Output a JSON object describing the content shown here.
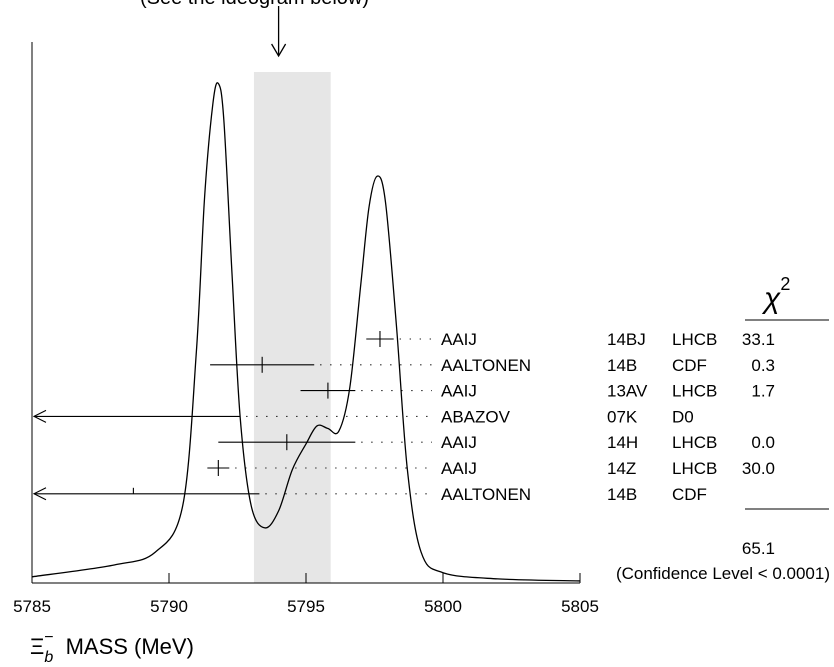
{
  "chart_data": {
    "type": "scatter",
    "title": "(See the ideogram below)",
    "xlabel_symbol": "Ξ",
    "xlabel_sub": "b",
    "xlabel_sup": "−",
    "xlabel_text": "MASS (MeV)",
    "xlim": [
      5785,
      5805
    ],
    "x_ticks": [
      5785,
      5790,
      5795,
      5800,
      5805
    ],
    "x_tick_labels": [
      "5785",
      "5790",
      "5795",
      "5800",
      "5805"
    ],
    "average": {
      "center": 5794.0,
      "band": [
        5793.1,
        5795.9
      ]
    },
    "chi2_header": "χ",
    "chi2_header_sup": "2",
    "measurements": [
      {
        "author": "AAIJ",
        "ref": "14BJ",
        "experiment": "LHCB",
        "value": 5797.7,
        "error_low": 0.5,
        "error_high": 0.5,
        "chi2": "33.1",
        "off_left": false
      },
      {
        "author": "AALTONEN",
        "ref": "14B",
        "experiment": "CDF",
        "value": 5793.4,
        "error_low": 1.9,
        "error_high": 1.9,
        "chi2": "0.3",
        "off_left": false
      },
      {
        "author": "AAIJ",
        "ref": "13AV",
        "experiment": "LHCB",
        "value": 5795.8,
        "error_low": 1.0,
        "error_high": 1.0,
        "chi2": "1.7",
        "off_left": false
      },
      {
        "author": "ABAZOV",
        "ref": "07K",
        "experiment": "D0",
        "value": null,
        "error_low": null,
        "error_high": 5792.6,
        "chi2": "",
        "off_left": true
      },
      {
        "author": "AAIJ",
        "ref": "14H",
        "experiment": "LHCB",
        "value": 5794.3,
        "error_low": 2.5,
        "error_high": 2.5,
        "chi2": "0.0",
        "off_left": false
      },
      {
        "author": "AAIJ",
        "ref": "14Z",
        "experiment": "LHCB",
        "value": 5791.8,
        "error_low": 0.4,
        "error_high": 0.4,
        "chi2": "30.0",
        "off_left": false
      },
      {
        "author": "AALTONEN",
        "ref": "14B",
        "experiment": "CDF",
        "value": 5788.7,
        "error_low": null,
        "error_high": 5793.3,
        "chi2": "",
        "off_left": true
      }
    ],
    "chi2_total": "65.1",
    "confidence_level": "(Confidence Level < 0.0001)",
    "ideogram": [
      [
        5785.0,
        0.012
      ],
      [
        5788.0,
        0.035
      ],
      [
        5789.5,
        0.06
      ],
      [
        5790.5,
        0.15
      ],
      [
        5791.0,
        0.45
      ],
      [
        5791.3,
        0.75
      ],
      [
        5791.6,
        0.93
      ],
      [
        5791.8,
        0.97
      ],
      [
        5792.0,
        0.9
      ],
      [
        5792.3,
        0.6
      ],
      [
        5792.6,
        0.32
      ],
      [
        5793.0,
        0.15
      ],
      [
        5793.5,
        0.107
      ],
      [
        5794.0,
        0.14
      ],
      [
        5794.5,
        0.22
      ],
      [
        5795.0,
        0.27
      ],
      [
        5795.4,
        0.305
      ],
      [
        5795.8,
        0.3
      ],
      [
        5796.2,
        0.295
      ],
      [
        5796.6,
        0.38
      ],
      [
        5797.0,
        0.58
      ],
      [
        5797.3,
        0.73
      ],
      [
        5797.6,
        0.79
      ],
      [
        5797.9,
        0.74
      ],
      [
        5798.3,
        0.5
      ],
      [
        5798.7,
        0.22
      ],
      [
        5799.2,
        0.06
      ],
      [
        5800.0,
        0.02
      ],
      [
        5802.0,
        0.008
      ],
      [
        5805.0,
        0.004
      ]
    ]
  }
}
